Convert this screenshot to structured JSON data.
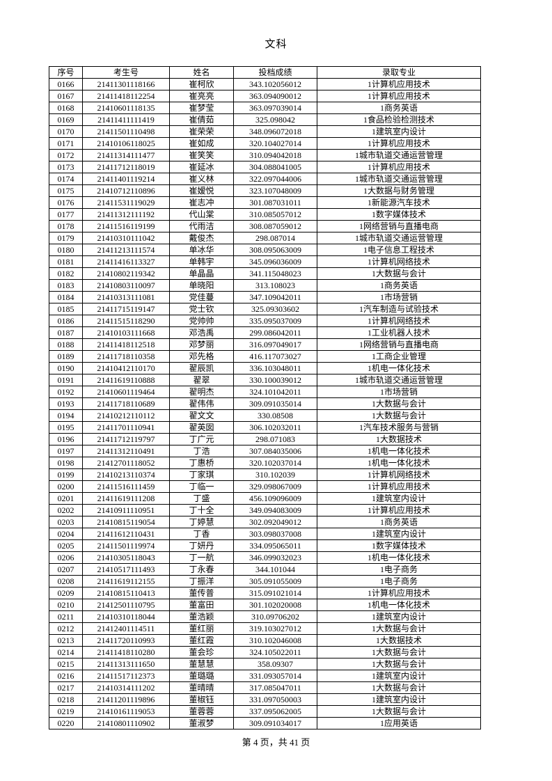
{
  "page": {
    "title": "文科",
    "footer": "第 4 页，共 41 页"
  },
  "table": {
    "columns": [
      "序号",
      "考生号",
      "姓名",
      "投档成绩",
      "录取专业"
    ],
    "rows": [
      [
        "0166",
        "21411301118166",
        "崔柯欣",
        "343.102056012",
        "1计算机应用技术"
      ],
      [
        "0167",
        "21411418112254",
        "崔亮亮",
        "363.094090012",
        "1计算机应用技术"
      ],
      [
        "0168",
        "21410601118135",
        "崔梦莹",
        "363.097039014",
        "1商务英语"
      ],
      [
        "0169",
        "21411411111419",
        "崔倩茹",
        "325.098042",
        "1食品检验检测技术"
      ],
      [
        "0170",
        "21411501110498",
        "崔荣荣",
        "348.096072018",
        "1建筑室内设计"
      ],
      [
        "0171",
        "21410106118025",
        "崔如成",
        "320.104027014",
        "1计算机应用技术"
      ],
      [
        "0172",
        "21411314111477",
        "崔笑笑",
        "310.094042018",
        "1城市轨道交通运营管理"
      ],
      [
        "0173",
        "21411712118019",
        "崔延冰",
        "304.088041005",
        "1计算机应用技术"
      ],
      [
        "0174",
        "21411401119214",
        "崔义林",
        "322.097044006",
        "1城市轨道交通运营管理"
      ],
      [
        "0175",
        "21410712110896",
        "崔嫒悦",
        "323.107048009",
        "1大数据与财务管理"
      ],
      [
        "0176",
        "21411531119029",
        "崔志冲",
        "301.087031011",
        "1新能源汽车技术"
      ],
      [
        "0177",
        "21411312111192",
        "代山棠",
        "310.085057012",
        "1数字媒体技术"
      ],
      [
        "0178",
        "21411516119199",
        "代雨洁",
        "308.087059012",
        "1网络营销与直播电商"
      ],
      [
        "0179",
        "21410310111042",
        "戴俊杰",
        "298.087014",
        "1城市轨道交通运营管理"
      ],
      [
        "0180",
        "21411213111574",
        "单冰华",
        "308.095063009",
        "1电子信息工程技术"
      ],
      [
        "0181",
        "21411416113327",
        "单韩宇",
        "345.096036009",
        "1计算机网络技术"
      ],
      [
        "0182",
        "21410802119342",
        "单晶晶",
        "341.115048023",
        "1大数据与会计"
      ],
      [
        "0183",
        "21410803110097",
        "单晓阳",
        "313.108023",
        "1商务英语"
      ],
      [
        "0184",
        "21410313111081",
        "党佳蔓",
        "347.109042011",
        "1市场营销"
      ],
      [
        "0185",
        "21411715119147",
        "党士钦",
        "325.09303602",
        "1汽车制造与试验技术"
      ],
      [
        "0186",
        "21411515118290",
        "党帅帅",
        "335.095037009",
        "1计算机网络技术"
      ],
      [
        "0187",
        "21410103111668",
        "邓浩禹",
        "299.086042011",
        "1工业机器人技术"
      ],
      [
        "0188",
        "21411418112518",
        "邓梦丽",
        "316.097049017",
        "1网络营销与直播电商"
      ],
      [
        "0189",
        "21411718110358",
        "邓先格",
        "416.117073027",
        "1工商企业管理"
      ],
      [
        "0190",
        "21410412110170",
        "翟辰凯",
        "336.103048011",
        "1机电一体化技术"
      ],
      [
        "0191",
        "21411619110888",
        "翟翠",
        "330.100039012",
        "1城市轨道交通运营管理"
      ],
      [
        "0192",
        "21410601119464",
        "翟明杰",
        "324.101042011",
        "1市场营销"
      ],
      [
        "0193",
        "21411718110689",
        "翟伟伟",
        "309.091035014",
        "1大数据与会计"
      ],
      [
        "0194",
        "21410212110112",
        "翟文文",
        "330.08508",
        "1大数据与会计"
      ],
      [
        "0195",
        "21411701110941",
        "翟英囡",
        "306.102032011",
        "1汽车技术服务与营销"
      ],
      [
        "0196",
        "21411712119797",
        "丁广元",
        "298.071083",
        "1大数据技术"
      ],
      [
        "0197",
        "21411312110491",
        "丁浩",
        "307.084035006",
        "1机电一体化技术"
      ],
      [
        "0198",
        "21412701118052",
        "丁惠桥",
        "320.102037014",
        "1机电一体化技术"
      ],
      [
        "0199",
        "21410213110374",
        "丁家琪",
        "310.102039",
        "1计算机网络技术"
      ],
      [
        "0200",
        "21411516111459",
        "丁临一",
        "329.098067009",
        "1计算机应用技术"
      ],
      [
        "0201",
        "21411619111208",
        "丁盛",
        "456.109096009",
        "1建筑室内设计"
      ],
      [
        "0202",
        "21410911110951",
        "丁十全",
        "349.094083009",
        "1计算机应用技术"
      ],
      [
        "0203",
        "21410815119054",
        "丁婷慧",
        "302.092049012",
        "1商务英语"
      ],
      [
        "0204",
        "21411612110431",
        "丁香",
        "303.098037008",
        "1建筑室内设计"
      ],
      [
        "0205",
        "21411501119974",
        "丁妍丹",
        "334.095065011",
        "1数字媒体技术"
      ],
      [
        "0206",
        "21410305118043",
        "丁一航",
        "346.099032023",
        "1机电一体化技术"
      ],
      [
        "0207",
        "21410517111493",
        "丁永春",
        "344.101044",
        "1电子商务"
      ],
      [
        "0208",
        "21411619112155",
        "丁振洋",
        "305.091055009",
        "1电子商务"
      ],
      [
        "0209",
        "21410815110413",
        "董传普",
        "315.091021014",
        "1计算机应用技术"
      ],
      [
        "0210",
        "21412501110795",
        "董富田",
        "301.102020008",
        "1机电一体化技术"
      ],
      [
        "0211",
        "21410310118044",
        "董浩颖",
        "310.09706202",
        "1建筑室内设计"
      ],
      [
        "0212",
        "21412401114511",
        "董红丽",
        "319.103027012",
        "1大数据与会计"
      ],
      [
        "0213",
        "21411720110993",
        "董红霞",
        "310.102046008",
        "1大数据技术"
      ],
      [
        "0214",
        "21411418110280",
        "董会珍",
        "324.105022011",
        "1大数据与会计"
      ],
      [
        "0215",
        "21411313111650",
        "董慧慧",
        "358.09307",
        "1大数据与会计"
      ],
      [
        "0216",
        "21411517112373",
        "董璐璐",
        "331.093057014",
        "1建筑室内设计"
      ],
      [
        "0217",
        "21410314111202",
        "董晴晴",
        "317.085047011",
        "1大数据与会计"
      ],
      [
        "0218",
        "21411201119896",
        "董椒钰",
        "331.097050003",
        "1建筑室内设计"
      ],
      [
        "0219",
        "21410161119053",
        "董蓉蓉",
        "337.095062005",
        "1大数据与会计"
      ],
      [
        "0220",
        "21410801110902",
        "董淑梦",
        "309.091034017",
        "1应用英语"
      ]
    ]
  }
}
